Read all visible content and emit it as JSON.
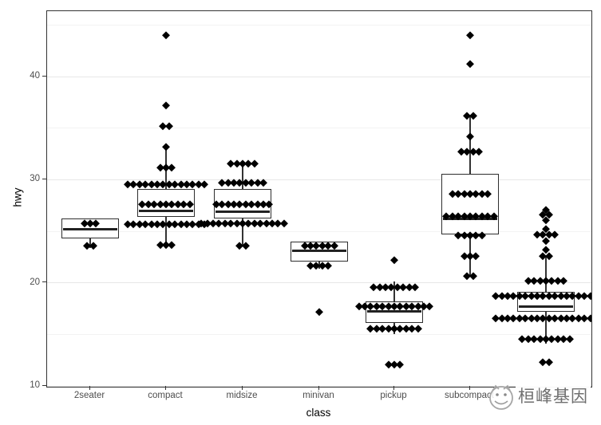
{
  "watermark": {
    "text": "桓峰基因",
    "logo": "cat-face-logo"
  },
  "chart_data": {
    "type": "boxplot",
    "title": "",
    "xlabel": "class",
    "ylabel": "hwy",
    "x_categories": [
      "2seater",
      "compact",
      "midsize",
      "minivan",
      "pickup",
      "subcompact",
      "suv"
    ],
    "y_major_ticks": [
      10,
      20,
      30,
      40
    ],
    "y_minor_gridlines": [
      15,
      25,
      35,
      45
    ],
    "ylim": [
      9.9,
      46.35
    ],
    "grid": "on",
    "legend": "none",
    "overlay": "centered dotplot of individual hwy values",
    "style": {
      "box_color": "#2e2e2e",
      "dot_color": "#000000",
      "grid_major_color": "#e7e7e7",
      "grid_minor_color": "#f3f3f3",
      "panel_border_color": "#333333",
      "tick_label_color": "#4d4d4d",
      "background": "#ffffff"
    },
    "groups": [
      {
        "label": "2seater",
        "box": {
          "q1": 24.3,
          "median": 25.2,
          "q3": 26.2,
          "whisker_low": 23.4,
          "whisker_high": 26.2
        },
        "dot_stacks": [
          {
            "value": 25.8,
            "count": 3
          },
          {
            "value": 23.6,
            "count": 2
          }
        ]
      },
      {
        "label": "compact",
        "box": {
          "q1": 26.4,
          "median": 27.0,
          "q3": 29.1,
          "whisker_low": 23.7,
          "whisker_high": 33.2
        },
        "dot_stacks": [
          {
            "value": 44.0,
            "count": 1
          },
          {
            "value": 37.2,
            "count": 1
          },
          {
            "value": 35.2,
            "count": 2
          },
          {
            "value": 33.2,
            "count": 1
          },
          {
            "value": 31.2,
            "count": 3
          },
          {
            "value": 29.6,
            "count": 14
          },
          {
            "value": 27.6,
            "count": 9
          },
          {
            "value": 25.7,
            "count": 14
          },
          {
            "value": 23.7,
            "count": 3
          }
        ]
      },
      {
        "label": "midsize",
        "box": {
          "q1": 26.2,
          "median": 26.9,
          "q3": 29.1,
          "whisker_low": 23.5,
          "whisker_high": 31.8
        },
        "dot_stacks": [
          {
            "value": 31.6,
            "count": 5
          },
          {
            "value": 29.7,
            "count": 8
          },
          {
            "value": 27.6,
            "count": 10
          },
          {
            "value": 25.8,
            "count": 15
          },
          {
            "value": 23.6,
            "count": 2
          }
        ]
      },
      {
        "label": "minivan",
        "box": {
          "q1": 22.1,
          "median": 23.1,
          "q3": 24.0,
          "whisker_low": 21.4,
          "whisker_high": 24.0
        },
        "dot_stacks": [
          {
            "value": 23.6,
            "count": 6
          },
          {
            "value": 21.7,
            "count": 4
          },
          {
            "value": 17.2,
            "count": 1
          }
        ]
      },
      {
        "label": "pickup",
        "box": {
          "q1": 16.1,
          "median": 17.2,
          "q3": 18.2,
          "whisker_low": 15.0,
          "whisker_high": 20.1
        },
        "dot_stacks": [
          {
            "value": 22.2,
            "count": 1
          },
          {
            "value": 19.6,
            "count": 8
          },
          {
            "value": 17.7,
            "count": 13
          },
          {
            "value": 15.6,
            "count": 9
          },
          {
            "value": 12.1,
            "count": 3
          }
        ]
      },
      {
        "label": "subcompact",
        "box": {
          "q1": 24.7,
          "median": 26.2,
          "q3": 30.6,
          "whisker_low": 20.7,
          "whisker_high": 36.2
        },
        "dot_stacks": [
          {
            "value": 44.0,
            "count": 1
          },
          {
            "value": 41.2,
            "count": 1
          },
          {
            "value": 36.2,
            "count": 2
          },
          {
            "value": 34.2,
            "count": 1
          },
          {
            "value": 32.7,
            "count": 4
          },
          {
            "value": 28.6,
            "count": 7
          },
          {
            "value": 26.5,
            "count": 9
          },
          {
            "value": 24.6,
            "count": 5
          },
          {
            "value": 22.6,
            "count": 3
          },
          {
            "value": 20.7,
            "count": 2
          }
        ]
      },
      {
        "label": "suv",
        "box": {
          "q1": 17.2,
          "median": 17.7,
          "q3": 19.1,
          "whisker_low": 14.1,
          "whisker_high": 22.6
        },
        "dot_stacks": [
          {
            "value": 27.1,
            "count": 1
          },
          {
            "value": 26.6,
            "count": 2
          },
          {
            "value": 26.1,
            "count": 1
          },
          {
            "value": 25.2,
            "count": 1
          },
          {
            "value": 24.7,
            "count": 4
          },
          {
            "value": 24.1,
            "count": 1
          },
          {
            "value": 23.2,
            "count": 1
          },
          {
            "value": 22.6,
            "count": 2
          },
          {
            "value": 20.2,
            "count": 7
          },
          {
            "value": 18.7,
            "count": 18
          },
          {
            "value": 16.6,
            "count": 18
          },
          {
            "value": 14.6,
            "count": 9
          },
          {
            "value": 12.3,
            "count": 2
          }
        ]
      }
    ]
  }
}
